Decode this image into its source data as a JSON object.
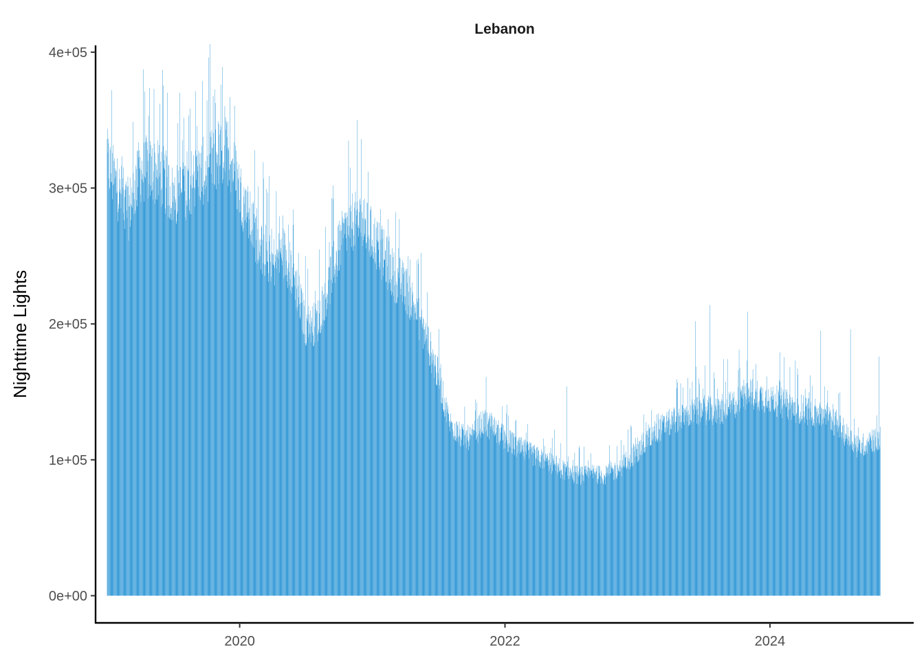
{
  "chart_data": {
    "type": "bar",
    "title": "Lebanon",
    "xlabel": "",
    "ylabel": "Nighttime Lights",
    "x_type": "date",
    "x_range": [
      "2018-11-30",
      "2025-01-31"
    ],
    "x_ticks": [
      {
        "value": "2020-01-01",
        "label": "2020"
      },
      {
        "value": "2022-01-01",
        "label": "2022"
      },
      {
        "value": "2024-01-01",
        "label": "2024"
      }
    ],
    "ylim": [
      -20000,
      405000
    ],
    "y_ticks": [
      {
        "value": 0,
        "label": "0e+00"
      },
      {
        "value": 100000,
        "label": "1e+05"
      },
      {
        "value": 200000,
        "label": "2e+05"
      },
      {
        "value": 300000,
        "label": "3e+05"
      },
      {
        "value": 400000,
        "label": "4e+05"
      }
    ],
    "grid": false,
    "legend": "none",
    "bar_color": "#1f8fd3",
    "date_start": "2019-01-01",
    "date_end": "2024-10-31",
    "series": [
      {
        "trend_points": [
          [
            "2019-01-01",
            325000
          ],
          [
            "2019-02-01",
            305000
          ],
          [
            "2019-03-01",
            290000
          ],
          [
            "2019-04-01",
            320000
          ],
          [
            "2019-05-01",
            320000
          ],
          [
            "2019-06-01",
            315000
          ],
          [
            "2019-07-01",
            300000
          ],
          [
            "2019-08-01",
            305000
          ],
          [
            "2019-09-01",
            315000
          ],
          [
            "2019-10-01",
            320000
          ],
          [
            "2019-11-01",
            330000
          ],
          [
            "2019-12-01",
            335000
          ],
          [
            "2020-01-01",
            305000
          ],
          [
            "2020-02-01",
            280000
          ],
          [
            "2020-03-01",
            262000
          ],
          [
            "2020-04-01",
            250000
          ],
          [
            "2020-05-01",
            258000
          ],
          [
            "2020-06-01",
            238000
          ],
          [
            "2020-07-01",
            202000
          ],
          [
            "2020-08-01",
            205000
          ],
          [
            "2020-09-01",
            232000
          ],
          [
            "2020-10-01",
            262000
          ],
          [
            "2020-11-01",
            282000
          ],
          [
            "2020-12-01",
            280000
          ],
          [
            "2021-01-01",
            270000
          ],
          [
            "2021-02-01",
            255000
          ],
          [
            "2021-03-01",
            240000
          ],
          [
            "2021-04-01",
            232000
          ],
          [
            "2021-05-01",
            215000
          ],
          [
            "2021-06-01",
            192000
          ],
          [
            "2021-07-01",
            165000
          ],
          [
            "2021-08-01",
            130000
          ],
          [
            "2021-09-01",
            120000
          ],
          [
            "2021-10-01",
            118000
          ],
          [
            "2021-11-01",
            130000
          ],
          [
            "2021-12-01",
            125000
          ],
          [
            "2022-01-01",
            118000
          ],
          [
            "2022-02-01",
            112000
          ],
          [
            "2022-03-01",
            108000
          ],
          [
            "2022-04-01",
            104000
          ],
          [
            "2022-05-01",
            100000
          ],
          [
            "2022-06-01",
            96000
          ],
          [
            "2022-07-01",
            92000
          ],
          [
            "2022-08-01",
            90000
          ],
          [
            "2022-09-01",
            92000
          ],
          [
            "2022-10-01",
            90000
          ],
          [
            "2022-11-01",
            94000
          ],
          [
            "2022-12-01",
            100000
          ],
          [
            "2023-01-01",
            108000
          ],
          [
            "2023-02-01",
            118000
          ],
          [
            "2023-03-01",
            125000
          ],
          [
            "2023-04-01",
            130000
          ],
          [
            "2023-05-01",
            135000
          ],
          [
            "2023-06-01",
            137000
          ],
          [
            "2023-07-01",
            140000
          ],
          [
            "2023-08-01",
            138000
          ],
          [
            "2023-09-01",
            140000
          ],
          [
            "2023-10-01",
            145000
          ],
          [
            "2023-11-01",
            152000
          ],
          [
            "2023-12-01",
            150000
          ],
          [
            "2024-01-01",
            148000
          ],
          [
            "2024-02-01",
            145000
          ],
          [
            "2024-03-01",
            142000
          ],
          [
            "2024-04-01",
            140000
          ],
          [
            "2024-05-01",
            138000
          ],
          [
            "2024-06-01",
            135000
          ],
          [
            "2024-07-01",
            130000
          ],
          [
            "2024-08-01",
            120000
          ],
          [
            "2024-09-01",
            112000
          ],
          [
            "2024-10-01",
            115000
          ],
          [
            "2024-10-31",
            118000
          ]
        ],
        "peaks": [
          [
            "2019-01-01",
            336000
          ],
          [
            "2019-04-15",
            371000
          ],
          [
            "2019-05-10",
            373000
          ],
          [
            "2019-06-03",
            387000
          ],
          [
            "2019-07-20",
            370000
          ],
          [
            "2019-11-10",
            376000
          ],
          [
            "2019-12-05",
            367000
          ],
          [
            "2020-12-01",
            336000
          ],
          [
            "2020-12-20",
            312000
          ],
          [
            "2021-11-10",
            161000
          ],
          [
            "2022-06-20",
            154000
          ],
          [
            "2023-06-10",
            202000
          ],
          [
            "2023-07-20",
            214000
          ],
          [
            "2023-11-01",
            209000
          ],
          [
            "2024-05-20",
            195000
          ],
          [
            "2024-08-10",
            196000
          ],
          [
            "2024-10-28",
            176000
          ]
        ]
      }
    ]
  }
}
